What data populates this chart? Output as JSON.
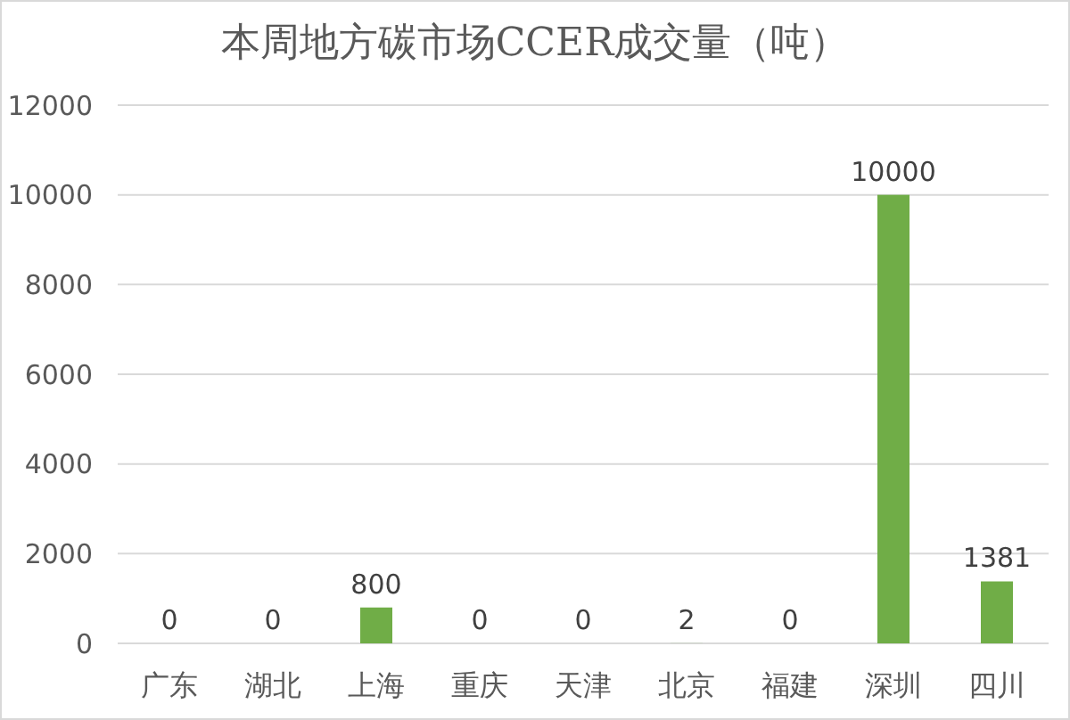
{
  "chart_data": {
    "type": "bar",
    "title": "本周地方碳市场CCER成交量（吨）",
    "categories": [
      "广东",
      "湖北",
      "上海",
      "重庆",
      "天津",
      "北京",
      "福建",
      "深圳",
      "四川"
    ],
    "values": [
      0,
      0,
      800,
      0,
      0,
      2,
      0,
      10000,
      1381
    ],
    "color": "#70ad47",
    "ylim": [
      0,
      12000
    ],
    "yticks": [
      0,
      2000,
      4000,
      6000,
      8000,
      10000,
      12000
    ],
    "grid": "y",
    "data_labels": true
  }
}
